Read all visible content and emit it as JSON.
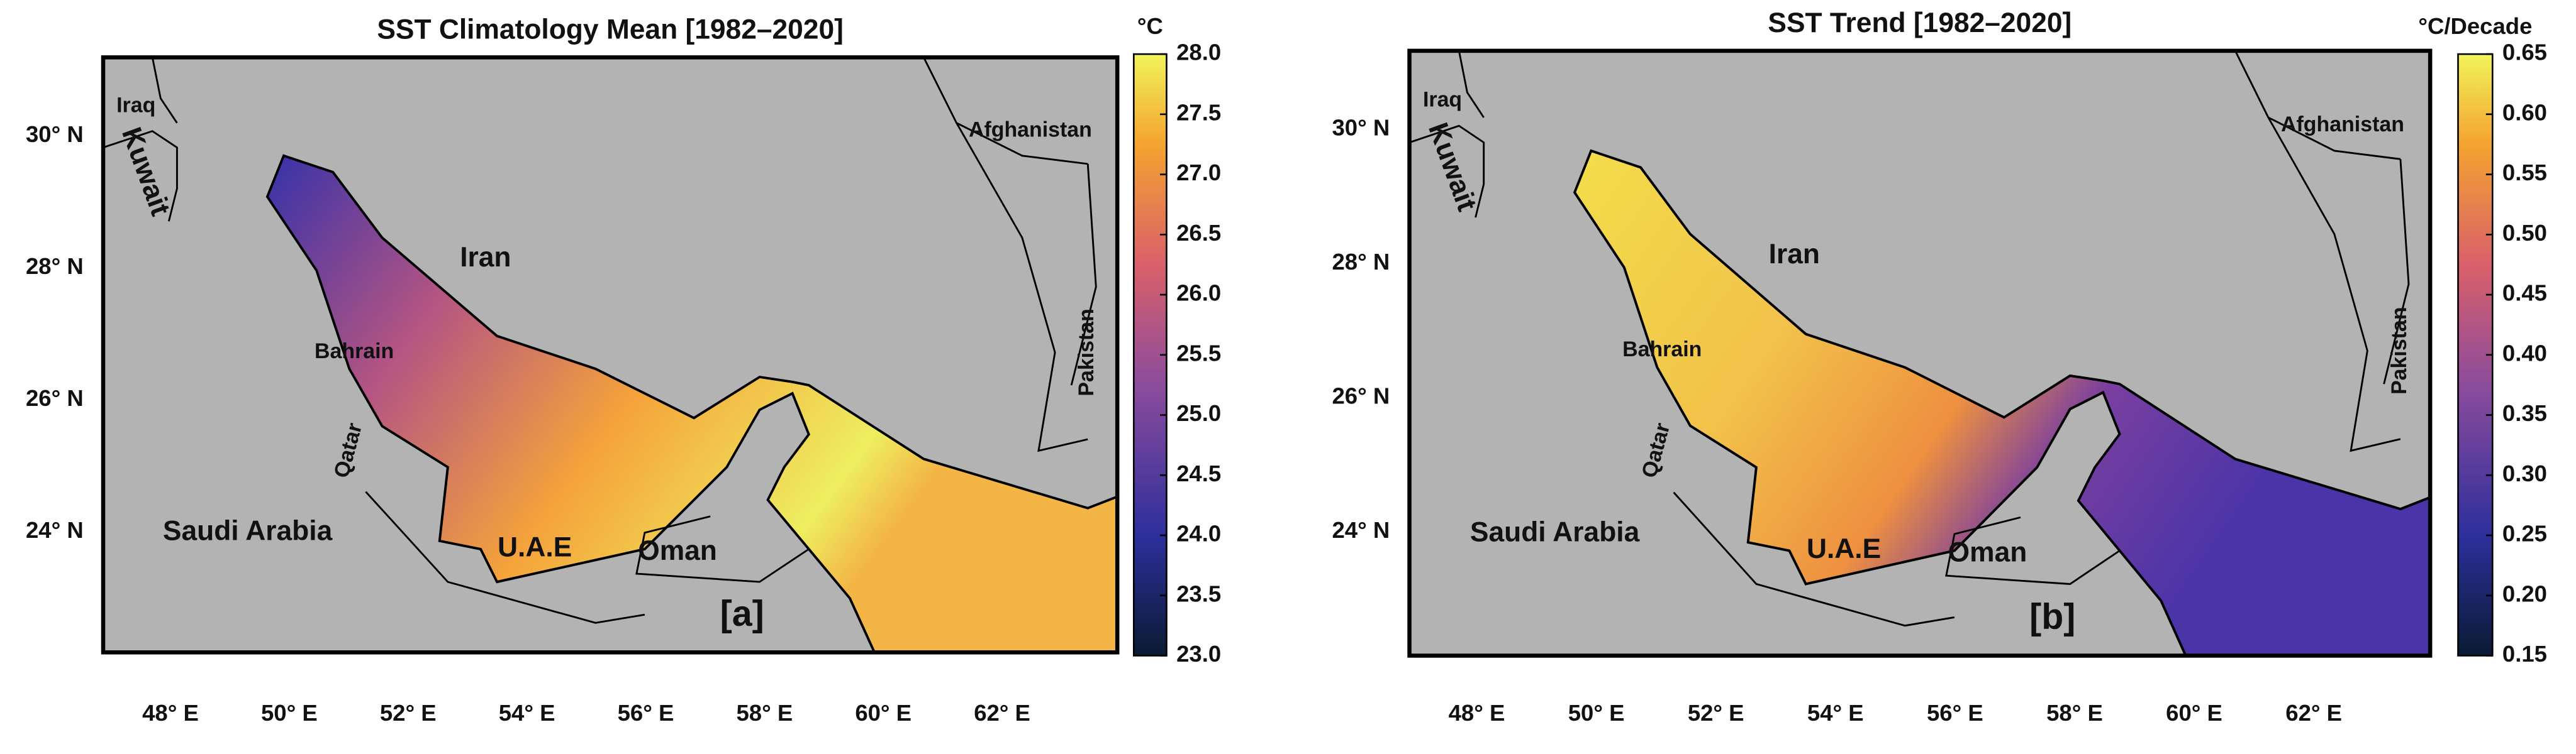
{
  "panels": [
    {
      "title": "SST Climatology Mean [1982–2020]",
      "panel_label": "[a]",
      "colorbar": {
        "unit": "°C",
        "range": [
          23,
          28
        ],
        "ticks": [
          {
            "value": 23,
            "label": "23.0"
          },
          {
            "value": 23.5,
            "label": "23.5"
          },
          {
            "value": 24,
            "label": "24.0"
          },
          {
            "value": 24.5,
            "label": "24.5"
          },
          {
            "value": 25,
            "label": "25.0"
          },
          {
            "value": 25.5,
            "label": "25.5"
          },
          {
            "value": 26,
            "label": "26.0"
          },
          {
            "value": 26.5,
            "label": "26.5"
          },
          {
            "value": 27,
            "label": "27.0"
          },
          {
            "value": 27.5,
            "label": "27.5"
          },
          {
            "value": 28,
            "label": "28.0"
          }
        ]
      },
      "lat_labels": [
        "30° N",
        "28° N",
        "26° N",
        "24° N"
      ],
      "lon_labels": [
        "48° E",
        "50° E",
        "52° E",
        "54° E",
        "56° E",
        "58° E",
        "60° E",
        "62° E"
      ],
      "places": [
        "Iraq",
        "Kuwait",
        "Iran",
        "Bahrain",
        "Qatar",
        "Saudi Arabia",
        "U.A.E",
        "Oman",
        "Afghanistan",
        "Pakistan"
      ]
    },
    {
      "title": "SST Trend [1982–2020]",
      "panel_label": "[b]",
      "colorbar": {
        "unit": "°C/Decade",
        "range": [
          0.15,
          0.65
        ],
        "ticks": [
          {
            "value": 0.15,
            "label": "0.15"
          },
          {
            "value": 0.2,
            "label": "0.20"
          },
          {
            "value": 0.25,
            "label": "0.25"
          },
          {
            "value": 0.3,
            "label": "0.30"
          },
          {
            "value": 0.35,
            "label": "0.35"
          },
          {
            "value": 0.4,
            "label": "0.40"
          },
          {
            "value": 0.45,
            "label": "0.45"
          },
          {
            "value": 0.5,
            "label": "0.50"
          },
          {
            "value": 0.55,
            "label": "0.55"
          },
          {
            "value": 0.6,
            "label": "0.60"
          },
          {
            "value": 0.65,
            "label": "0.65"
          }
        ]
      },
      "lat_labels": [
        "30° N",
        "28° N",
        "26° N",
        "24° N"
      ],
      "lon_labels": [
        "48° E",
        "50° E",
        "52° E",
        "54° E",
        "56° E",
        "58° E",
        "60° E",
        "62° E"
      ],
      "places": [
        "Iraq",
        "Kuwait",
        "Iran",
        "Bahrain",
        "Qatar",
        "Saudi Arabia",
        "U.A.E",
        "Oman",
        "Afghanistan",
        "Pakistan"
      ]
    }
  ]
}
